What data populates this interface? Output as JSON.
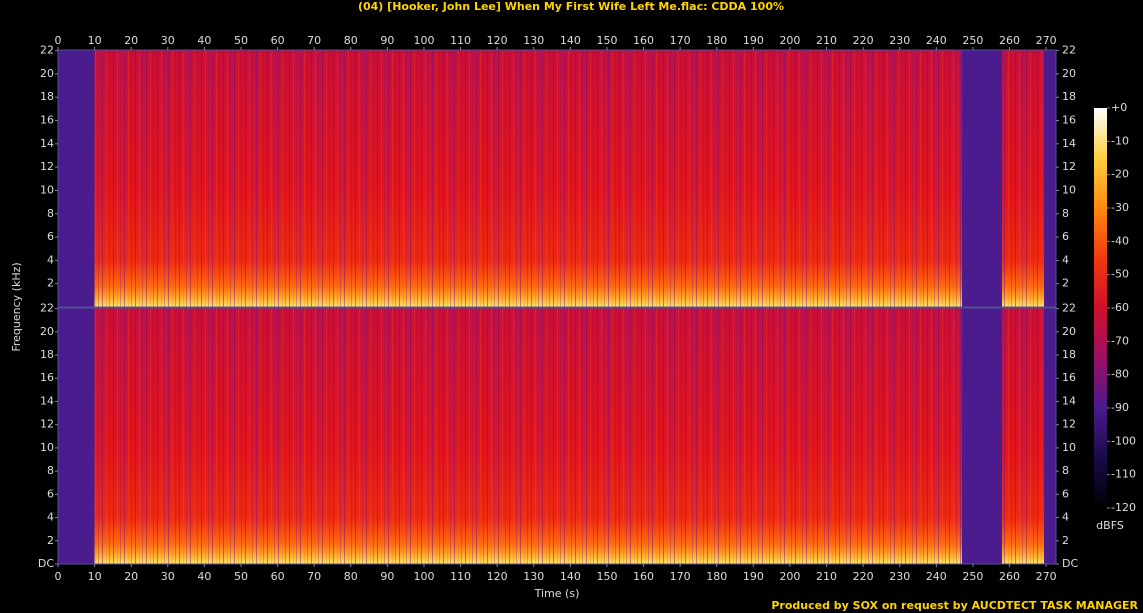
{
  "chart_data": [
    {
      "type": "spectrogram",
      "title": "(04) [Hooker, John Lee] When My First Wife Left Me.flac: CDDA 100%",
      "ylabel": "Frequency (kHz)",
      "xlim": [
        0,
        272.7
      ],
      "xticks": [
        0,
        10,
        20,
        30,
        40,
        50,
        60,
        70,
        80,
        90,
        100,
        110,
        120,
        130,
        140,
        150,
        160,
        170,
        180,
        190,
        200,
        210,
        220,
        230,
        240,
        250,
        260,
        270
      ],
      "ylim": [
        0,
        22.05
      ],
      "yticks": [
        2,
        4,
        6,
        8,
        10,
        12,
        14,
        16,
        18,
        20,
        22
      ]
    },
    {
      "type": "spectrogram",
      "xlabel": "Time (s)",
      "xlim": [
        0,
        272.7
      ],
      "xticks": [
        0,
        10,
        20,
        30,
        40,
        50,
        60,
        70,
        80,
        90,
        100,
        110,
        120,
        130,
        140,
        150,
        160,
        170,
        180,
        190,
        200,
        210,
        220,
        230,
        240,
        250,
        260,
        270
      ],
      "ylim": [
        0,
        22.05
      ],
      "yticks": [
        {
          "value": 0,
          "label": "DC"
        },
        2,
        4,
        6,
        8,
        10,
        12,
        14,
        16,
        18,
        20,
        22
      ],
      "colorbar": {
        "label": "dBFS",
        "zlim": [
          -120,
          0
        ],
        "ticks": [
          {
            "value": 0,
            "label": "+0"
          },
          -10,
          -20,
          -30,
          -40,
          -50,
          -60,
          -70,
          -80,
          -90,
          -100,
          -110,
          -120
        ],
        "colors": [
          "#000000",
          "#1a0a4a",
          "#4b1a8c",
          "#9a1066",
          "#d0102a",
          "#f03a10",
          "#ff8a10",
          "#ffd040",
          "#ffffff"
        ]
      }
    }
  ],
  "footer": "Produced by SOX on request by AUCDTECT TASK MANAGER"
}
